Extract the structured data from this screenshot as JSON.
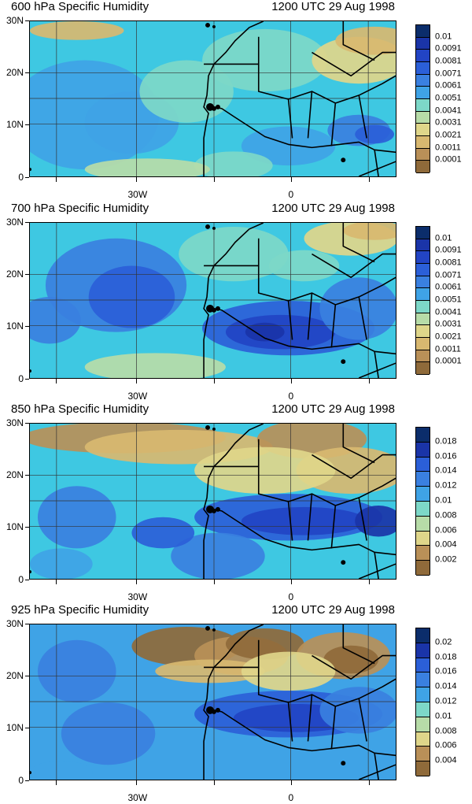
{
  "panels": [
    {
      "title_left": "600 hPa Specific Humidity",
      "title_right": "1200 UTC 29 Aug 1998",
      "lat_labels": [
        "30N",
        "20N",
        "10N",
        "0"
      ],
      "lon_labels": [
        "30W",
        "0"
      ],
      "legend_labels": [
        "0.01",
        "0.0091",
        "0.0081",
        "0.0071",
        "0.0061",
        "0.0051",
        "0.0041",
        "0.0031",
        "0.0021",
        "0.0011",
        "0.0001"
      ],
      "legend_colors": [
        "#0b2d6b",
        "#1a34a8",
        "#2244c4",
        "#2b5fd8",
        "#3a80e0",
        "#3fa3e6",
        "#3ec8e2",
        "#7dd8c8",
        "#b7dca8",
        "#dfd68a",
        "#d8b870",
        "#b99058",
        "#8f6a3a"
      ]
    },
    {
      "title_left": "700 hPa Specific Humidity",
      "title_right": "1200 UTC 29 Aug 1998",
      "lat_labels": [
        "30N",
        "20N",
        "10N",
        "0"
      ],
      "lon_labels": [
        "30W",
        "0"
      ],
      "legend_labels": [
        "0.01",
        "0.0091",
        "0.0081",
        "0.0071",
        "0.0061",
        "0.0051",
        "0.0041",
        "0.0031",
        "0.0021",
        "0.0011",
        "0.0001"
      ],
      "legend_colors": [
        "#0b2d6b",
        "#1a34a8",
        "#2244c4",
        "#2b5fd8",
        "#3a80e0",
        "#3fa3e6",
        "#3ec8e2",
        "#7dd8c8",
        "#b7dca8",
        "#dfd68a",
        "#d8b870",
        "#b99058",
        "#8f6a3a"
      ]
    },
    {
      "title_left": "850 hPa Specific Humidity",
      "title_right": "1200 UTC 29 Aug 1998",
      "lat_labels": [
        "30N",
        "20N",
        "10N",
        "0"
      ],
      "lon_labels": [
        "30W",
        "0"
      ],
      "legend_labels": [
        "0.018",
        "0.016",
        "0.014",
        "0.012",
        "0.01",
        "0.008",
        "0.006",
        "0.004",
        "0.002"
      ],
      "legend_colors": [
        "#0b2d6b",
        "#1a34a8",
        "#2244c4",
        "#2b5fd8",
        "#3a80e0",
        "#3fa3e6",
        "#3ec8e2",
        "#7dd8c8",
        "#b7dca8",
        "#dfd68a",
        "#d8b870",
        "#b99058",
        "#8f6a3a"
      ]
    },
    {
      "title_left": "925 hPa Specific Humidity",
      "title_right": "1200 UTC 29 Aug 1998",
      "lat_labels": [
        "30N",
        "20N",
        "10N",
        "0"
      ],
      "lon_labels": [
        "30W",
        "0"
      ],
      "legend_labels": [
        "0.02",
        "0.018",
        "0.016",
        "0.014",
        "0.012",
        "0.01",
        "0.008",
        "0.006",
        "0.004"
      ],
      "legend_colors": [
        "#0b2d6b",
        "#1a34a8",
        "#2244c4",
        "#2b5fd8",
        "#3a80e0",
        "#3fa3e6",
        "#3ec8e2",
        "#7dd8c8",
        "#b7dca8",
        "#dfd68a",
        "#d8b870",
        "#b99058",
        "#8f6a3a"
      ]
    }
  ]
}
